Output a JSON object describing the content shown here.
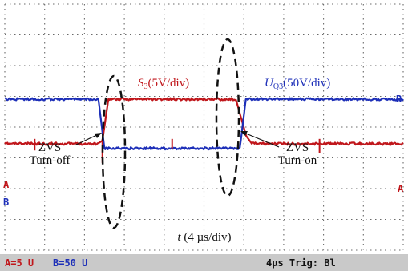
{
  "chart_data": {
    "type": "line",
    "time_per_div": "4µs",
    "series": [
      {
        "name": "S3",
        "channel": "A",
        "color": "#c0161b",
        "label_main": "S",
        "label_sub": "3",
        "label_rest": "(5V/div)",
        "points": [
          {
            "t": 0,
            "div": -1.45
          },
          {
            "t": 2.33,
            "div": -1.45
          },
          {
            "t": 2.45,
            "div": -1.35
          },
          {
            "t": 2.6,
            "div": 0.0
          },
          {
            "t": 5.8,
            "div": 0.0
          },
          {
            "t": 6.06,
            "div": -1.2
          },
          {
            "t": 6.2,
            "div": -1.45
          },
          {
            "t": 10,
            "div": -1.45
          }
        ]
      },
      {
        "name": "UQ3",
        "channel": "B",
        "color": "#1d2fb8",
        "label_main": "U",
        "label_sub": "Q3",
        "label_rest": "(50V/div)",
        "points": [
          {
            "t": 0,
            "div": 0.0
          },
          {
            "t": 2.35,
            "div": 0.0
          },
          {
            "t": 2.5,
            "div": -1.6
          },
          {
            "t": 5.9,
            "div": -1.6
          },
          {
            "t": 6.05,
            "div": 0.0
          },
          {
            "t": 10,
            "div": 0.0
          }
        ]
      }
    ],
    "annotations": [
      {
        "name": "zvs-turn-off",
        "line1": "ZVS",
        "line2": "Turn-off",
        "t": 2.45
      },
      {
        "name": "zvs-turn-on",
        "line1": "ZVS",
        "line2": "Turn-on",
        "t": 5.95
      }
    ],
    "xlabel_italic": "t",
    "xlabel_rest": " (4 µs/div)",
    "channel_markers": [
      "A",
      "B"
    ],
    "grid": true
  },
  "statusbar": {
    "ch_a": "A=5 U",
    "ch_b": "B=50 U",
    "right": "4µs Trig: Bl"
  }
}
